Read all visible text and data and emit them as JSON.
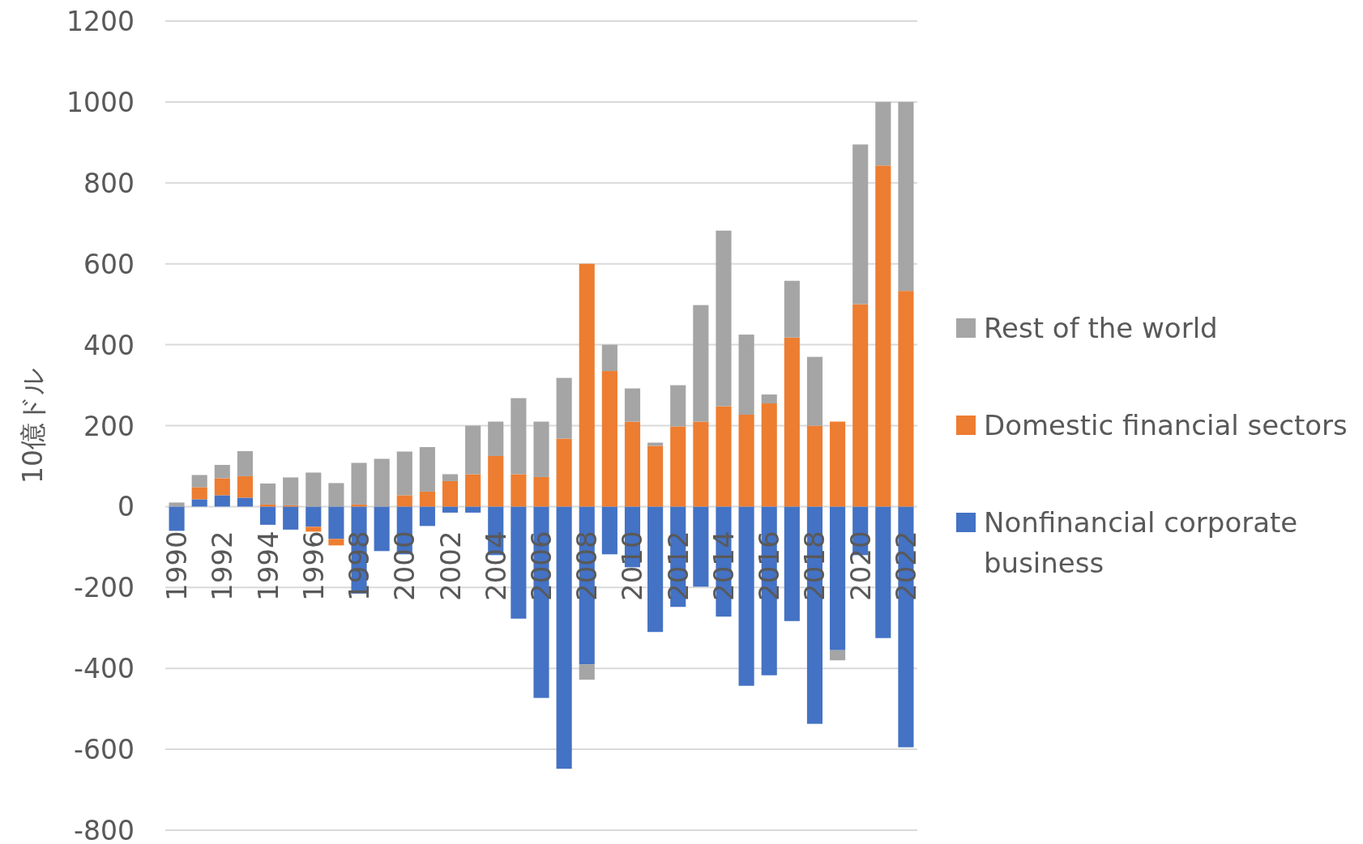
{
  "chart_data": {
    "type": "bar",
    "stacked": true,
    "ylabel": "10億ドル",
    "categories": [
      "1990",
      null,
      "1992",
      null,
      "1994",
      null,
      "1996",
      null,
      "1998",
      null,
      "2000",
      null,
      "2002",
      null,
      "2004",
      null,
      "2006",
      null,
      "2008",
      null,
      "2010",
      null,
      "2012",
      null,
      "2014",
      null,
      "2016",
      null,
      "2018",
      null,
      "2020",
      null,
      "2022"
    ],
    "series": [
      {
        "name": "Nonfinancial corporate business",
        "color": "#4472c4",
        "values": [
          -60,
          18,
          28,
          22,
          -45,
          -57,
          -50,
          -80,
          -215,
          -110,
          -118,
          -48,
          -15,
          -15,
          -120,
          -277,
          -473,
          -648,
          -390,
          -118,
          -150,
          -310,
          -248,
          -198,
          -272,
          -443,
          -417,
          -283,
          -537,
          -355,
          -120,
          -325,
          -595
        ]
      },
      {
        "name": "Domestic financial sectors",
        "color": "#ed7d31",
        "values": [
          0,
          30,
          42,
          53,
          5,
          3,
          -12,
          -16,
          5,
          0,
          28,
          37,
          63,
          80,
          125,
          80,
          73,
          168,
          600,
          335,
          210,
          150,
          198,
          210,
          248,
          227,
          255,
          418,
          200,
          210,
          500,
          843,
          533
        ]
      },
      {
        "name": "Rest of the world",
        "color": "#a5a5a5",
        "values": [
          10,
          30,
          33,
          62,
          52,
          69,
          84,
          58,
          103,
          118,
          108,
          110,
          17,
          120,
          85,
          188,
          137,
          150,
          -38,
          65,
          82,
          8,
          102,
          288,
          434,
          198,
          22,
          140,
          170,
          -25,
          395,
          157,
          467
        ]
      }
    ],
    "ylim": [
      -800,
      1200
    ],
    "yticks": [
      -800,
      -600,
      -400,
      -200,
      0,
      200,
      400,
      600,
      800,
      1000,
      1200
    ],
    "grid": "y",
    "legend": "right"
  }
}
